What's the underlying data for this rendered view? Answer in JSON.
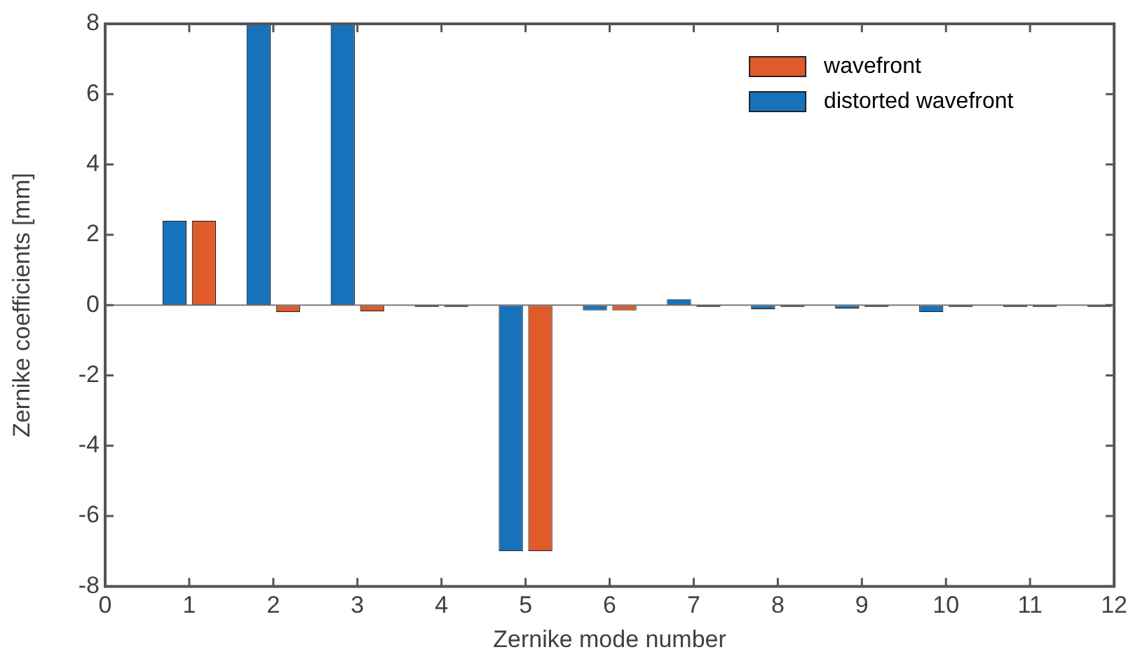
{
  "chart_data": {
    "type": "bar",
    "xlabel": "Zernike mode number",
    "ylabel": "Zernike coefficients [mm]",
    "x": [
      1,
      2,
      3,
      4,
      5,
      6,
      7,
      8,
      9,
      10,
      11,
      12
    ],
    "series": [
      {
        "name": "distorted wavefront",
        "color": "#1772bc",
        "values": [
          2.4,
          8,
          8,
          -0.05,
          -7,
          -0.15,
          0.17,
          -0.12,
          -0.1,
          -0.2,
          -0.05,
          -0.05
        ]
      },
      {
        "name": "wavefront",
        "color": "#df5b2a",
        "values": [
          2.4,
          -0.2,
          -0.18,
          -0.05,
          -7,
          -0.15,
          -0.05,
          -0.05,
          -0.05,
          -0.05,
          -0.05,
          null
        ]
      }
    ],
    "xlim": [
      0,
      12
    ],
    "xticks": [
      0,
      1,
      2,
      3,
      4,
      5,
      6,
      7,
      8,
      9,
      10,
      11,
      12
    ],
    "ylim": [
      -8,
      8
    ],
    "yticks": [
      -8,
      -6,
      -4,
      -2,
      0,
      2,
      4,
      6,
      8
    ],
    "grid": false,
    "ref_lines": [
      {
        "axis": "y",
        "value": 0,
        "color": "#7a7a7a"
      }
    ],
    "legend": "top right"
  }
}
